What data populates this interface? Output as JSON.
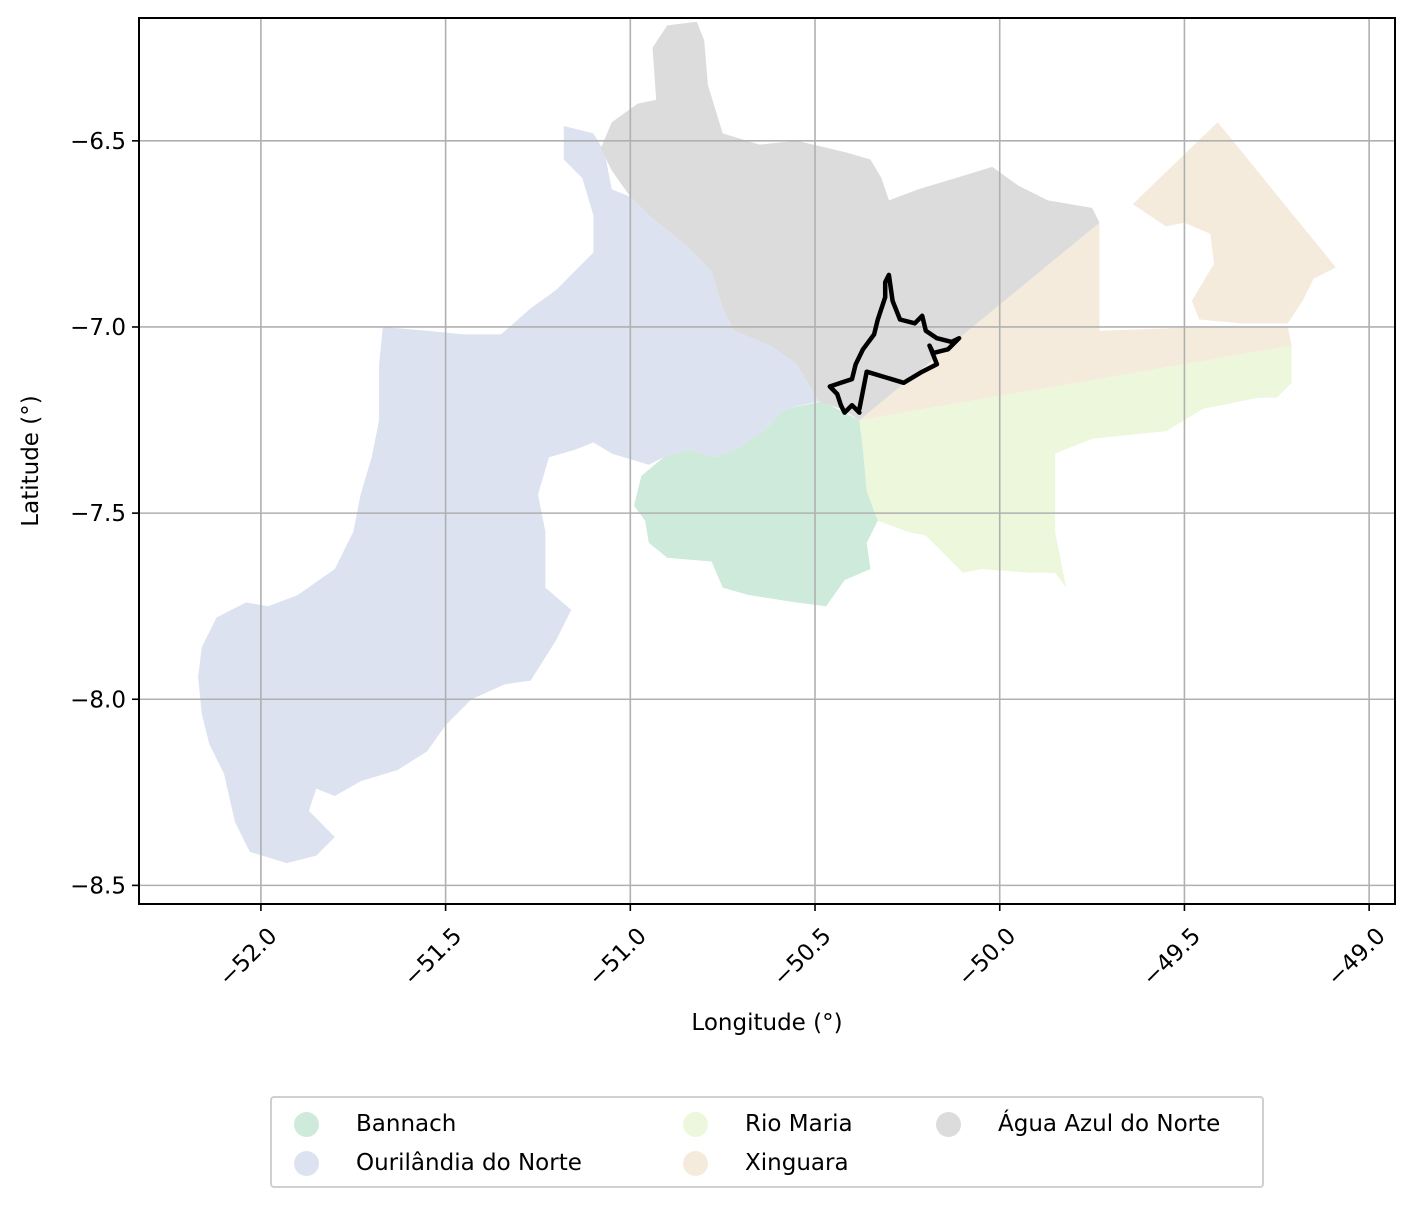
{
  "chart_data": {
    "type": "map",
    "xlabel": "Longitude (°)",
    "ylabel": "Latitude (°)",
    "xlim": [
      -52.33,
      -48.93
    ],
    "ylim": [
      -8.55,
      -6.17
    ],
    "xticks": [
      -52.0,
      -51.5,
      -51.0,
      -50.5,
      -50.0,
      -49.5,
      -49.0
    ],
    "xtick_labels": [
      "−52.0",
      "−51.5",
      "−51.0",
      "−50.5",
      "−50.0",
      "−49.5",
      "−49.0"
    ],
    "yticks": [
      -6.5,
      -7.0,
      -7.5,
      -8.0,
      -8.5
    ],
    "ytick_labels": [
      "−6.5",
      "−7.0",
      "−7.5",
      "−8.0",
      "−8.5"
    ],
    "grid": true,
    "legend_position": "bottom-center",
    "regions": [
      {
        "name": "Bannach",
        "color": "#cdeadb",
        "polygon": [
          [
            -50.48,
            -7.2
          ],
          [
            -50.38,
            -7.25
          ],
          [
            -50.37,
            -7.33
          ],
          [
            -50.36,
            -7.44
          ],
          [
            -50.33,
            -7.52
          ],
          [
            -50.36,
            -7.58
          ],
          [
            -50.35,
            -7.65
          ],
          [
            -50.42,
            -7.68
          ],
          [
            -50.47,
            -7.75
          ],
          [
            -50.55,
            -7.74
          ],
          [
            -50.68,
            -7.72
          ],
          [
            -50.75,
            -7.7
          ],
          [
            -50.78,
            -7.63
          ],
          [
            -50.9,
            -7.62
          ],
          [
            -50.95,
            -7.58
          ],
          [
            -50.96,
            -7.52
          ],
          [
            -50.99,
            -7.48
          ],
          [
            -50.97,
            -7.4
          ],
          [
            -50.91,
            -7.35
          ],
          [
            -50.84,
            -7.33
          ],
          [
            -50.77,
            -7.35
          ],
          [
            -50.7,
            -7.32
          ],
          [
            -50.64,
            -7.28
          ],
          [
            -50.58,
            -7.22
          ]
        ]
      },
      {
        "name": "Ourilândia do Norte",
        "color": "#dde2f0",
        "polygon": [
          [
            -51.18,
            -6.46
          ],
          [
            -51.1,
            -6.48
          ],
          [
            -51.07,
            -6.53
          ],
          [
            -51.05,
            -6.63
          ],
          [
            -51.0,
            -6.65
          ],
          [
            -50.95,
            -6.7
          ],
          [
            -50.85,
            -6.78
          ],
          [
            -50.78,
            -6.85
          ],
          [
            -50.75,
            -6.95
          ],
          [
            -50.72,
            -7.01
          ],
          [
            -50.62,
            -7.05
          ],
          [
            -50.55,
            -7.1
          ],
          [
            -50.49,
            -7.2
          ],
          [
            -50.58,
            -7.22
          ],
          [
            -50.64,
            -7.28
          ],
          [
            -50.7,
            -7.32
          ],
          [
            -50.77,
            -7.35
          ],
          [
            -50.84,
            -7.33
          ],
          [
            -50.91,
            -7.35
          ],
          [
            -50.95,
            -7.37
          ],
          [
            -51.05,
            -7.34
          ],
          [
            -51.1,
            -7.31
          ],
          [
            -51.15,
            -7.33
          ],
          [
            -51.22,
            -7.35
          ],
          [
            -51.25,
            -7.45
          ],
          [
            -51.23,
            -7.55
          ],
          [
            -51.23,
            -7.7
          ],
          [
            -51.16,
            -7.76
          ],
          [
            -51.2,
            -7.84
          ],
          [
            -51.27,
            -7.95
          ],
          [
            -51.34,
            -7.96
          ],
          [
            -51.43,
            -8.0
          ],
          [
            -51.5,
            -8.07
          ],
          [
            -51.55,
            -8.14
          ],
          [
            -51.63,
            -8.19
          ],
          [
            -51.73,
            -8.22
          ],
          [
            -51.8,
            -8.26
          ],
          [
            -51.85,
            -8.24
          ],
          [
            -51.87,
            -8.3
          ],
          [
            -51.8,
            -8.37
          ],
          [
            -51.85,
            -8.42
          ],
          [
            -51.93,
            -8.44
          ],
          [
            -52.03,
            -8.41
          ],
          [
            -52.07,
            -8.33
          ],
          [
            -52.1,
            -8.2
          ],
          [
            -52.14,
            -8.12
          ],
          [
            -52.16,
            -8.04
          ],
          [
            -52.17,
            -7.94
          ],
          [
            -52.16,
            -7.86
          ],
          [
            -52.12,
            -7.78
          ],
          [
            -52.04,
            -7.74
          ],
          [
            -51.98,
            -7.75
          ],
          [
            -51.9,
            -7.72
          ],
          [
            -51.8,
            -7.65
          ],
          [
            -51.75,
            -7.55
          ],
          [
            -51.73,
            -7.45
          ],
          [
            -51.7,
            -7.35
          ],
          [
            -51.68,
            -7.25
          ],
          [
            -51.68,
            -7.1
          ],
          [
            -51.67,
            -7.0
          ],
          [
            -51.55,
            -7.01
          ],
          [
            -51.45,
            -7.02
          ],
          [
            -51.35,
            -7.02
          ],
          [
            -51.27,
            -6.95
          ],
          [
            -51.2,
            -6.9
          ],
          [
            -51.1,
            -6.8
          ],
          [
            -51.1,
            -6.7
          ],
          [
            -51.13,
            -6.6
          ],
          [
            -51.18,
            -6.55
          ]
        ]
      },
      {
        "name": "Rio Maria",
        "color": "#ecf7dc",
        "polygon": [
          [
            -50.38,
            -7.25
          ],
          [
            -49.21,
            -7.05
          ],
          [
            -49.21,
            -7.15
          ],
          [
            -49.25,
            -7.19
          ],
          [
            -49.3,
            -7.19
          ],
          [
            -49.45,
            -7.22
          ],
          [
            -49.55,
            -7.28
          ],
          [
            -49.75,
            -7.3
          ],
          [
            -49.85,
            -7.34
          ],
          [
            -49.85,
            -7.55
          ],
          [
            -49.82,
            -7.7
          ],
          [
            -49.85,
            -7.66
          ],
          [
            -49.92,
            -7.66
          ],
          [
            -50.05,
            -7.65
          ],
          [
            -50.1,
            -7.66
          ],
          [
            -50.16,
            -7.6
          ],
          [
            -50.2,
            -7.56
          ],
          [
            -50.25,
            -7.55
          ],
          [
            -50.33,
            -7.52
          ],
          [
            -50.36,
            -7.44
          ],
          [
            -50.37,
            -7.33
          ]
        ]
      },
      {
        "name": "Xinguara",
        "color": "#f5ebdc",
        "polygon": [
          [
            -50.38,
            -7.25
          ],
          [
            -49.73,
            -6.72
          ],
          [
            -49.73,
            -7.01
          ],
          [
            -49.45,
            -7.0
          ],
          [
            -49.32,
            -7.0
          ],
          [
            -49.22,
            -7.0
          ],
          [
            -49.21,
            -7.05
          ],
          [
            -50.38,
            -7.25
          ]
        ]
      },
      {
        "name": "Xinguara",
        "color": "#f5ebdc",
        "polygon": [
          [
            -49.64,
            -6.67
          ],
          [
            -49.41,
            -6.45
          ],
          [
            -49.09,
            -6.84
          ],
          [
            -49.15,
            -6.87
          ],
          [
            -49.18,
            -6.93
          ],
          [
            -49.22,
            -6.99
          ],
          [
            -49.35,
            -6.99
          ],
          [
            -49.46,
            -6.98
          ],
          [
            -49.48,
            -6.93
          ],
          [
            -49.45,
            -6.88
          ],
          [
            -49.42,
            -6.83
          ],
          [
            -49.43,
            -6.75
          ],
          [
            -49.5,
            -6.72
          ],
          [
            -49.55,
            -6.73
          ],
          [
            -49.58,
            -6.71
          ]
        ]
      },
      {
        "name": "Água Azul do Norte",
        "color": "#dcdcdc",
        "polygon": [
          [
            -51.05,
            -6.45
          ],
          [
            -50.98,
            -6.4
          ],
          [
            -50.93,
            -6.39
          ],
          [
            -50.94,
            -6.25
          ],
          [
            -50.9,
            -6.19
          ],
          [
            -50.82,
            -6.18
          ],
          [
            -50.8,
            -6.23
          ],
          [
            -50.79,
            -6.35
          ],
          [
            -50.75,
            -6.48
          ],
          [
            -50.65,
            -6.51
          ],
          [
            -50.55,
            -6.5
          ],
          [
            -50.42,
            -6.53
          ],
          [
            -50.35,
            -6.55
          ],
          [
            -50.32,
            -6.6
          ],
          [
            -50.3,
            -6.66
          ],
          [
            -50.22,
            -6.63
          ],
          [
            -50.12,
            -6.6
          ],
          [
            -50.02,
            -6.57
          ],
          [
            -49.95,
            -6.62
          ],
          [
            -49.87,
            -6.66
          ],
          [
            -49.75,
            -6.68
          ],
          [
            -49.73,
            -6.72
          ],
          [
            -50.38,
            -7.25
          ],
          [
            -50.43,
            -7.22
          ],
          [
            -50.49,
            -7.2
          ],
          [
            -50.55,
            -7.1
          ],
          [
            -50.62,
            -7.05
          ],
          [
            -50.72,
            -7.01
          ],
          [
            -50.75,
            -6.95
          ],
          [
            -50.78,
            -6.85
          ],
          [
            -50.85,
            -6.78
          ],
          [
            -50.95,
            -6.7
          ],
          [
            -51.0,
            -6.65
          ],
          [
            -51.05,
            -6.58
          ],
          [
            -51.08,
            -6.52
          ]
        ]
      }
    ],
    "route": [
      [
        -50.38,
        -7.23
      ],
      [
        -50.4,
        -7.21
      ],
      [
        -50.42,
        -7.23
      ],
      [
        -50.43,
        -7.21
      ],
      [
        -50.44,
        -7.18
      ],
      [
        -50.46,
        -7.16
      ],
      [
        -50.43,
        -7.15
      ],
      [
        -50.4,
        -7.14
      ],
      [
        -50.39,
        -7.1
      ],
      [
        -50.37,
        -7.06
      ],
      [
        -50.34,
        -7.02
      ],
      [
        -50.33,
        -6.98
      ],
      [
        -50.31,
        -6.92
      ],
      [
        -50.31,
        -6.88
      ],
      [
        -50.3,
        -6.86
      ],
      [
        -50.29,
        -6.93
      ],
      [
        -50.27,
        -6.98
      ],
      [
        -50.23,
        -6.99
      ],
      [
        -50.21,
        -6.97
      ],
      [
        -50.2,
        -7.01
      ],
      [
        -50.17,
        -7.03
      ],
      [
        -50.13,
        -7.04
      ],
      [
        -50.11,
        -7.03
      ],
      [
        -50.14,
        -7.06
      ],
      [
        -50.18,
        -7.07
      ],
      [
        -50.19,
        -7.05
      ],
      [
        -50.17,
        -7.1
      ],
      [
        -50.21,
        -7.12
      ],
      [
        -50.26,
        -7.15
      ],
      [
        -50.36,
        -7.12
      ],
      [
        -50.38,
        -7.22
      ]
    ]
  },
  "legend": {
    "entries": [
      {
        "label": "Bannach",
        "color": "#cdeadb"
      },
      {
        "label": "Ourilândia do Norte",
        "color": "#dde2f0"
      },
      {
        "label": "Rio Maria",
        "color": "#ecf7dc"
      },
      {
        "label": "Xinguara",
        "color": "#f5ebdc"
      },
      {
        "label": "Água Azul do Norte",
        "color": "#dcdcdc"
      }
    ]
  }
}
